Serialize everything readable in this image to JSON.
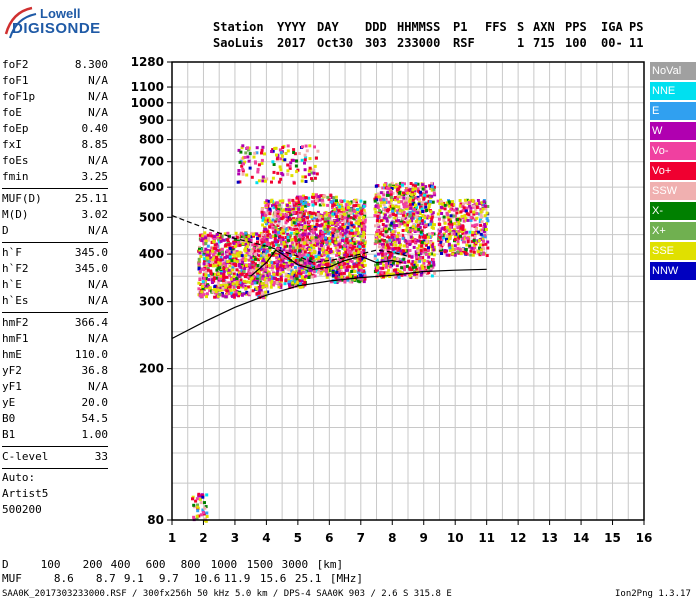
{
  "logo": {
    "line1": "Lowell",
    "line2": "DIGISONDE"
  },
  "header": {
    "labels": [
      "Station",
      "YYYY",
      "DAY",
      "DDD",
      "HHMMSS",
      "P1",
      "FFS",
      "S",
      "AXN",
      "PPS",
      "IGA",
      "PS"
    ],
    "values": [
      "SaoLuis",
      "2017",
      "Oct30",
      "303",
      "233000",
      "RSF",
      "",
      "1",
      "715",
      "100",
      "00-",
      "11"
    ]
  },
  "params_group1": [
    {
      "k": "foF2",
      "v": "8.300"
    },
    {
      "k": "foF1",
      "v": "N/A"
    },
    {
      "k": "foF1p",
      "v": "N/A"
    },
    {
      "k": "foE",
      "v": "N/A"
    },
    {
      "k": "foEp",
      "v": "0.40"
    },
    {
      "k": "fxI",
      "v": "8.85"
    },
    {
      "k": "foEs",
      "v": "N/A"
    },
    {
      "k": "fmin",
      "v": "3.25"
    }
  ],
  "params_group2": [
    {
      "k": "MUF(D)",
      "v": "25.11"
    },
    {
      "k": "M(D)",
      "v": "3.02"
    },
    {
      "k": "D",
      "v": "N/A"
    }
  ],
  "params_group3": [
    {
      "k": "h`F",
      "v": "345.0"
    },
    {
      "k": "h`F2",
      "v": "345.0"
    },
    {
      "k": "h`E",
      "v": "N/A"
    },
    {
      "k": "h`Es",
      "v": "N/A"
    }
  ],
  "params_group4": [
    {
      "k": "hmF2",
      "v": "366.4"
    },
    {
      "k": "hmF1",
      "v": "N/A"
    },
    {
      "k": "hmE",
      "v": "110.0"
    },
    {
      "k": "yF2",
      "v": "36.8"
    },
    {
      "k": "yF1",
      "v": "N/A"
    },
    {
      "k": "yE",
      "v": "20.0"
    },
    {
      "k": "B0",
      "v": "54.5"
    },
    {
      "k": "B1",
      "v": "1.00"
    }
  ],
  "clevel": {
    "k": "C-level",
    "v": "33"
  },
  "auto": [
    "Auto:",
    "Artist5",
    "500200"
  ],
  "legend": [
    {
      "label": "NoVal",
      "color": "#a0a0a0"
    },
    {
      "label": "NNE",
      "color": "#00e0f0"
    },
    {
      "label": "E",
      "color": "#30a0f0"
    },
    {
      "label": "W",
      "color": "#b000b0"
    },
    {
      "label": "Vo-",
      "color": "#f040a0"
    },
    {
      "label": "Vo+",
      "color": "#f00030"
    },
    {
      "label": "SSW",
      "color": "#f0b0b0"
    },
    {
      "label": "X-",
      "color": "#008000"
    },
    {
      "label": "X+",
      "color": "#70b050"
    },
    {
      "label": "SSE",
      "color": "#e0e000"
    },
    {
      "label": "NNW",
      "color": "#0000c0"
    }
  ],
  "muf_table": {
    "d_label": "D",
    "d_values": [
      "100",
      "200",
      "400",
      "600",
      "800",
      "1000",
      "1500",
      "3000",
      "[km]"
    ],
    "muf_label": "MUF",
    "muf_values": [
      "8.6",
      "8.7",
      "9.1",
      "9.7",
      "10.6",
      "11.9",
      "15.6",
      "25.1",
      "[MHz]"
    ]
  },
  "footer": {
    "left": "SAA0K_2017303233000.RSF / 300fx256h 50 kHz 5.0 km / DPS-4 SAA0K 903 / 2.6 S 315.8 E",
    "right": "Ion2Png 1.3.17"
  },
  "chart_data": {
    "type": "scatter",
    "title": "",
    "xlabel": "",
    "ylabel": "",
    "xlim": [
      1,
      16
    ],
    "ylim": [
      80,
      1280
    ],
    "x_ticks": [
      1,
      2,
      3,
      4,
      5,
      6,
      7,
      8,
      9,
      10,
      11,
      12,
      13,
      14,
      15,
      16
    ],
    "y_ticks": [
      80,
      200,
      300,
      400,
      500,
      600,
      700,
      800,
      900,
      1000,
      1100,
      1280
    ],
    "y_scale": "log",
    "grid": true,
    "clusters": [
      {
        "x0": 1.8,
        "x1": 4.0,
        "y0": 310,
        "y1": 460,
        "density": 900
      },
      {
        "x0": 3.8,
        "x1": 5.2,
        "y0": 330,
        "y1": 560,
        "density": 700
      },
      {
        "x0": 5.0,
        "x1": 6.0,
        "y0": 350,
        "y1": 520,
        "density": 450
      },
      {
        "x0": 6.0,
        "x1": 7.1,
        "y0": 340,
        "y1": 560,
        "density": 650
      },
      {
        "x0": 7.4,
        "x1": 9.3,
        "y0": 350,
        "y1": 620,
        "density": 950
      },
      {
        "x0": 9.4,
        "x1": 11.0,
        "y0": 400,
        "y1": 560,
        "density": 380
      },
      {
        "x0": 3.0,
        "x1": 5.6,
        "y0": 620,
        "y1": 780,
        "density": 140
      },
      {
        "x0": 4.8,
        "x1": 6.2,
        "y0": 540,
        "y1": 580,
        "density": 80
      },
      {
        "x0": 1.6,
        "x1": 2.1,
        "y0": 80,
        "y1": 95,
        "density": 40
      }
    ],
    "series": [
      {
        "points": [
          [
            1.0,
            240
          ],
          [
            2.0,
            265
          ],
          [
            3.0,
            290
          ],
          [
            4.0,
            312
          ],
          [
            5.0,
            330
          ],
          [
            6.0,
            340
          ],
          [
            7.0,
            347
          ],
          [
            8.0,
            352
          ],
          [
            9.0,
            360
          ],
          [
            10.0,
            363
          ],
          [
            11.0,
            365
          ]
        ]
      },
      {
        "points": [
          [
            1.0,
            505
          ],
          [
            2.0,
            470
          ],
          [
            3.0,
            440
          ],
          [
            4.0,
            420
          ],
          [
            5.0,
            395
          ],
          [
            5.5,
            380
          ],
          [
            6.0,
            385
          ],
          [
            6.5,
            392
          ],
          [
            7.0,
            400
          ],
          [
            7.5,
            410
          ],
          [
            8.0,
            405
          ],
          [
            8.5,
            395
          ]
        ]
      },
      {
        "points": [
          [
            3.5,
            350
          ],
          [
            4.0,
            380
          ],
          [
            4.3,
            410
          ],
          [
            4.6,
            395
          ],
          [
            5.0,
            375
          ],
          [
            5.5,
            365
          ],
          [
            6.0,
            370
          ],
          [
            6.5,
            385
          ],
          [
            7.0,
            395
          ],
          [
            7.5,
            380
          ],
          [
            8.0,
            385
          ],
          [
            8.3,
            380
          ]
        ]
      }
    ]
  }
}
